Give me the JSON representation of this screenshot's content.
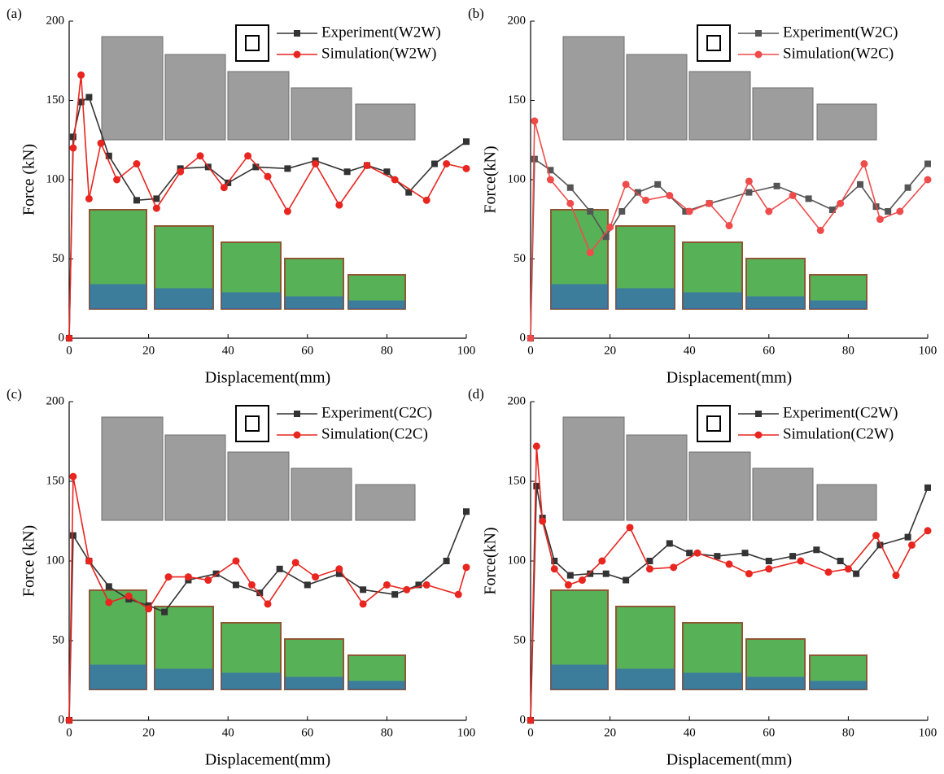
{
  "chart_data": [
    {
      "type": "line",
      "panel_label": "(a)",
      "xlabel": "Displacement(mm)",
      "ylabel": "Force (kN)",
      "xlim": [
        0,
        100
      ],
      "ylim": [
        0,
        200
      ],
      "xticks": [
        0,
        20,
        40,
        60,
        80,
        100
      ],
      "yticks": [
        0,
        50,
        100,
        150,
        200
      ],
      "series": [
        {
          "name": "Experiment(W2W)",
          "color": "#333333",
          "marker": "square",
          "x": [
            0,
            1,
            3,
            5,
            10,
            17,
            22,
            28,
            35,
            40,
            47,
            55,
            62,
            70,
            75,
            80,
            85.5,
            92,
            100
          ],
          "values": [
            0,
            127,
            149,
            152,
            115,
            87,
            88,
            107,
            108,
            98,
            108,
            107,
            112,
            105,
            109,
            105,
            92,
            110,
            124
          ]
        },
        {
          "name": "Simulation(W2W)",
          "color": "#e8251f",
          "marker": "circle",
          "x": [
            0,
            1,
            3,
            5,
            8,
            12,
            17,
            22,
            28,
            33,
            39,
            45,
            50,
            55,
            62,
            68,
            75,
            82,
            90,
            95,
            100
          ],
          "values": [
            0,
            120,
            166,
            88,
            123,
            100,
            110,
            82,
            105,
            115,
            95,
            115,
            102,
            80,
            110,
            84,
            109,
            100,
            87,
            110,
            107
          ]
        }
      ]
    },
    {
      "type": "line",
      "panel_label": "(b)",
      "xlabel": "Displacement(mm)",
      "ylabel": "Force(kN)",
      "xlim": [
        0,
        100
      ],
      "ylim": [
        0,
        200
      ],
      "xticks": [
        0,
        20,
        40,
        60,
        80,
        100
      ],
      "yticks": [
        0,
        50,
        100,
        150,
        200
      ],
      "series": [
        {
          "name": "Experiment(W2C)",
          "color": "#555555",
          "marker": "square",
          "x": [
            0,
            1,
            5,
            10,
            15,
            19,
            23,
            27,
            32,
            39,
            45,
            55,
            62,
            70,
            76,
            83,
            87,
            90,
            95,
            100
          ],
          "values": [
            0,
            113,
            106,
            95,
            80,
            64,
            80,
            92,
            97,
            80,
            85,
            92,
            96,
            88,
            81,
            97,
            83,
            80,
            95,
            110
          ]
        },
        {
          "name": "Simulation(W2C)",
          "color": "#ef4b4b",
          "marker": "circle",
          "x": [
            0,
            1,
            5,
            10,
            15,
            20,
            24,
            29,
            35,
            40,
            45,
            50,
            55,
            60,
            66,
            73,
            78,
            84,
            88,
            93,
            100
          ],
          "values": [
            0,
            137,
            100,
            85,
            54,
            70,
            97,
            87,
            90,
            80,
            85,
            71,
            99,
            80,
            90,
            68,
            85,
            110,
            75,
            80,
            100
          ]
        }
      ]
    },
    {
      "type": "line",
      "panel_label": "(c)",
      "xlabel": "Displacement(mm)",
      "ylabel": "Force (kN)",
      "xlim": [
        0,
        100
      ],
      "ylim": [
        0,
        200
      ],
      "xticks": [
        0,
        20,
        40,
        60,
        80,
        100
      ],
      "yticks": [
        0,
        50,
        100,
        150,
        200
      ],
      "series": [
        {
          "name": "Experiment(C2C)",
          "color": "#333333",
          "marker": "square",
          "x": [
            0,
            1,
            5,
            10,
            15,
            20,
            24,
            30,
            37,
            42,
            48,
            53,
            60,
            68,
            74,
            82,
            88,
            95,
            100
          ],
          "values": [
            0,
            116,
            100,
            84,
            76,
            72,
            68,
            88,
            92,
            85,
            80,
            95,
            85,
            92,
            82,
            79,
            85,
            100,
            131
          ]
        },
        {
          "name": "Simulation(C2C)",
          "color": "#e8251f",
          "marker": "circle",
          "x": [
            0,
            1,
            5,
            10,
            15,
            20,
            25,
            30,
            35,
            42,
            46,
            50,
            57,
            62,
            68,
            74,
            80,
            85,
            90,
            98,
            100
          ],
          "values": [
            0,
            153,
            100,
            74,
            78,
            70,
            90,
            90,
            88,
            100,
            85,
            73,
            99,
            90,
            95,
            73,
            85,
            82,
            85,
            79,
            96
          ]
        }
      ]
    },
    {
      "type": "line",
      "panel_label": "(d)",
      "xlabel": "Displacement(mm)",
      "ylabel": "Force(kN)",
      "xlim": [
        0,
        100
      ],
      "ylim": [
        0,
        200
      ],
      "xticks": [
        0,
        20,
        40,
        60,
        80,
        100
      ],
      "yticks": [
        0,
        50,
        100,
        150,
        200
      ],
      "series": [
        {
          "name": "Experiment(C2W)",
          "color": "#333333",
          "marker": "square",
          "x": [
            0,
            1.5,
            3,
            6,
            10,
            15,
            19,
            24,
            30,
            35,
            40,
            47,
            54,
            60,
            66,
            72,
            78,
            82,
            88,
            95,
            100
          ],
          "values": [
            0,
            147,
            127,
            100,
            91,
            92,
            92,
            88,
            100,
            111,
            105,
            103,
            105,
            100,
            103,
            107,
            100,
            92,
            110,
            115,
            146
          ]
        },
        {
          "name": "Simulation(C2W)",
          "color": "#e8251f",
          "marker": "circle",
          "x": [
            0,
            1.5,
            3,
            6,
            9.5,
            13,
            18,
            25,
            30,
            36,
            42,
            50,
            55,
            60,
            68,
            75,
            80,
            87,
            92,
            96,
            100
          ],
          "values": [
            0,
            172,
            125,
            95,
            85,
            88,
            100,
            121,
            95,
            96,
            105,
            98,
            92,
            95,
            100,
            93,
            95,
            116,
            91,
            110,
            119
          ]
        }
      ]
    }
  ]
}
